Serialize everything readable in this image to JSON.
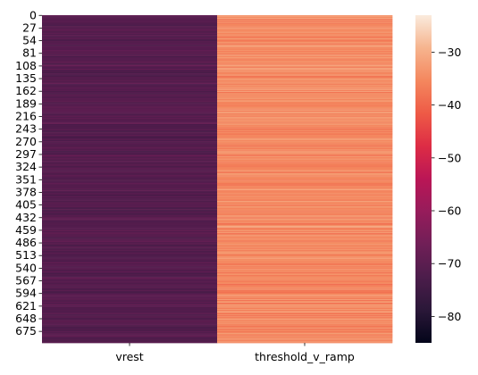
{
  "chart_data": {
    "type": "heatmap",
    "title": "",
    "xlabel": "",
    "ylabel": "",
    "columns": [
      "vrest",
      "threshold_v_ramp"
    ],
    "row_count": 700,
    "y_tick_labels": [
      "0",
      "27",
      "54",
      "81",
      "108",
      "135",
      "162",
      "189",
      "216",
      "243",
      "270",
      "297",
      "324",
      "351",
      "378",
      "405",
      "432",
      "459",
      "486",
      "513",
      "540",
      "567",
      "594",
      "621",
      "648",
      "675"
    ],
    "colorbar": {
      "vmin": -85,
      "vmax": -23,
      "ticks": [
        -80,
        -70,
        -60,
        -50,
        -40,
        -30
      ],
      "tick_labels": [
        "−80",
        "−70",
        "−60",
        "−50",
        "−40",
        "−30"
      ],
      "colormap": "rocket",
      "colors": [
        "#03051a",
        "#2a1738",
        "#4c1d4b",
        "#701f57",
        "#961c5b",
        "#ba1656",
        "#dd2c45",
        "#ee5a46",
        "#f4875e",
        "#f6b48e",
        "#faebdd"
      ]
    },
    "series": [
      {
        "name": "vrest",
        "typical_range": [
          -76,
          -66
        ],
        "typical_value": -71
      },
      {
        "name": "threshold_v_ramp",
        "typical_range": [
          -42,
          -28
        ],
        "typical_value": -35
      }
    ]
  }
}
